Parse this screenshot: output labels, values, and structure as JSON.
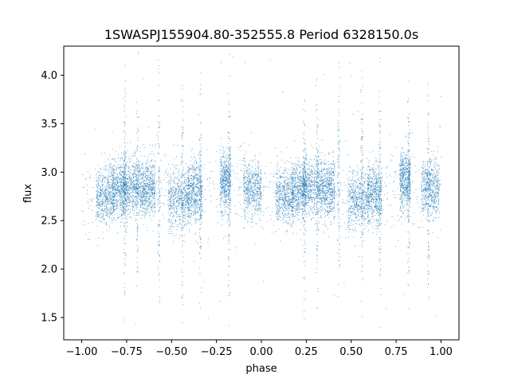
{
  "chart_data": {
    "type": "scatter",
    "title": "1SWASPJ155904.80-352555.8 Period 6328150.0s",
    "xlabel": "phase",
    "ylabel": "flux",
    "xlim": [
      -1.1,
      1.1
    ],
    "ylim": [
      1.27,
      4.3
    ],
    "xticks": [
      -1.0,
      -0.75,
      -0.5,
      -0.25,
      0.0,
      0.25,
      0.5,
      0.75,
      1.0
    ],
    "xtick_labels": [
      "−1.00",
      "−0.75",
      "−0.50",
      "−0.25",
      "0.00",
      "0.25",
      "0.50",
      "0.75",
      "1.00"
    ],
    "yticks": [
      1.5,
      2.0,
      2.5,
      3.0,
      3.5,
      4.0
    ],
    "ytick_labels": [
      "1.5",
      "2.0",
      "2.5",
      "3.0",
      "3.5",
      "4.0"
    ],
    "grid": false,
    "marker_color": "#1f77b4",
    "phase_range": [
      -1.0,
      1.0
    ],
    "flux_median": 2.82,
    "segments": [
      {
        "center": -0.87,
        "half_width": 0.05,
        "flux_mean": 2.75
      },
      {
        "center": -0.79,
        "half_width": 0.04,
        "flux_mean": 2.83
      },
      {
        "center": -0.72,
        "half_width": 0.05,
        "flux_mean": 2.86
      },
      {
        "center": -0.63,
        "half_width": 0.04,
        "flux_mean": 2.82
      },
      {
        "center": -0.46,
        "half_width": 0.06,
        "flux_mean": 2.72
      },
      {
        "center": -0.37,
        "half_width": 0.04,
        "flux_mean": 2.8
      },
      {
        "center": -0.2,
        "half_width": 0.03,
        "flux_mean": 2.92
      },
      {
        "center": -0.05,
        "half_width": 0.05,
        "flux_mean": 2.83
      },
      {
        "center": 0.13,
        "half_width": 0.05,
        "flux_mean": 2.74
      },
      {
        "center": 0.21,
        "half_width": 0.04,
        "flux_mean": 2.82
      },
      {
        "center": 0.28,
        "half_width": 0.05,
        "flux_mean": 2.86
      },
      {
        "center": 0.37,
        "half_width": 0.04,
        "flux_mean": 2.82
      },
      {
        "center": 0.54,
        "half_width": 0.06,
        "flux_mean": 2.7
      },
      {
        "center": 0.63,
        "half_width": 0.04,
        "flux_mean": 2.78
      },
      {
        "center": 0.8,
        "half_width": 0.03,
        "flux_mean": 2.92
      },
      {
        "center": 0.94,
        "half_width": 0.05,
        "flux_mean": 2.84
      }
    ],
    "vertical_streaks": [
      -0.76,
      -0.69,
      -0.57,
      -0.44,
      -0.34,
      -0.18,
      0.24,
      0.31,
      0.43,
      0.56,
      0.66,
      0.82,
      0.93
    ]
  }
}
